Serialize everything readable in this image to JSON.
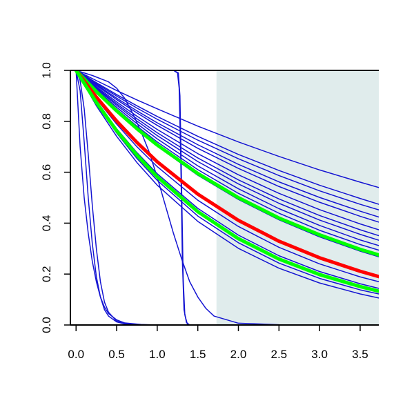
{
  "chart_data": {
    "type": "line",
    "title": "",
    "xlabel": "",
    "ylabel": "",
    "xlim": [
      -0.07,
      3.73
    ],
    "ylim": [
      0.0,
      1.0
    ],
    "x_ticks": [
      0.0,
      0.5,
      1.0,
      1.5,
      2.0,
      2.5,
      3.0,
      3.5
    ],
    "x_tick_labels": [
      "0.0",
      "0.5",
      "1.0",
      "1.5",
      "2.0",
      "2.5",
      "3.0",
      "3.5"
    ],
    "y_ticks": [
      0.0,
      0.2,
      0.4,
      0.6,
      0.8,
      1.0
    ],
    "y_tick_labels": [
      "0.0",
      "0.2",
      "0.4",
      "0.6",
      "0.8",
      "1.0"
    ],
    "grid": false,
    "legend": "none",
    "shaded_region": {
      "x_from": 1.73,
      "x_to": 3.73,
      "color": "#e0ecec"
    },
    "colors": {
      "blue": "#1414d2",
      "red": "#ff0000",
      "green": "#00ff00",
      "axis": "#000000"
    },
    "series": [
      {
        "color": "blue",
        "width": 1.5,
        "x": [
          0,
          0.25,
          0.5,
          0.75,
          1.0,
          1.5,
          2.0,
          2.5,
          3.0,
          3.5,
          3.73
        ],
        "y": [
          1.0,
          0.96,
          0.921,
          0.884,
          0.849,
          0.781,
          0.719,
          0.662,
          0.609,
          0.561,
          0.54
        ]
      },
      {
        "color": "blue",
        "width": 1.5,
        "x": [
          0,
          0.25,
          0.5,
          0.75,
          1.0,
          1.5,
          2.0,
          2.5,
          3.0,
          3.5,
          3.73
        ],
        "y": [
          1.0,
          0.952,
          0.905,
          0.861,
          0.819,
          0.741,
          0.67,
          0.607,
          0.549,
          0.497,
          0.474
        ]
      },
      {
        "color": "blue",
        "width": 1.5,
        "x": [
          0,
          0.25,
          0.5,
          0.75,
          1.0,
          1.5,
          2.0,
          2.5,
          3.0,
          3.5,
          3.73
        ],
        "y": [
          1.0,
          0.948,
          0.899,
          0.852,
          0.808,
          0.726,
          0.653,
          0.587,
          0.527,
          0.474,
          0.452
        ]
      },
      {
        "color": "blue",
        "width": 1.5,
        "x": [
          0,
          0.25,
          0.5,
          0.75,
          1.0,
          1.5,
          2.0,
          2.5,
          3.0,
          3.5,
          3.73
        ],
        "y": [
          1.0,
          0.944,
          0.891,
          0.841,
          0.794,
          0.708,
          0.631,
          0.562,
          0.501,
          0.447,
          0.424
        ]
      },
      {
        "color": "blue",
        "width": 1.5,
        "x": [
          0,
          0.25,
          0.5,
          0.75,
          1.0,
          1.5,
          2.0,
          2.5,
          3.0,
          3.5,
          3.73
        ],
        "y": [
          1.0,
          0.941,
          0.885,
          0.833,
          0.784,
          0.694,
          0.615,
          0.544,
          0.482,
          0.427,
          0.404
        ]
      },
      {
        "color": "blue",
        "width": 1.5,
        "x": [
          0,
          0.25,
          0.5,
          0.75,
          1.0,
          1.5,
          2.0,
          2.5,
          3.0,
          3.5,
          3.73
        ],
        "y": [
          1.0,
          0.936,
          0.876,
          0.82,
          0.768,
          0.673,
          0.59,
          0.517,
          0.453,
          0.397,
          0.374
        ]
      },
      {
        "color": "blue",
        "width": 1.5,
        "x": [
          0,
          0.25,
          0.5,
          0.75,
          1.0,
          1.5,
          2.0,
          2.5,
          3.0,
          3.5,
          3.73
        ],
        "y": [
          1.0,
          0.932,
          0.869,
          0.81,
          0.755,
          0.656,
          0.57,
          0.495,
          0.43,
          0.374,
          0.351
        ]
      },
      {
        "color": "blue",
        "width": 1.5,
        "x": [
          0,
          0.25,
          0.5,
          0.75,
          1.0,
          1.5,
          2.0,
          2.5,
          3.0,
          3.5,
          3.73
        ],
        "y": [
          1.0,
          0.929,
          0.863,
          0.801,
          0.744,
          0.642,
          0.554,
          0.478,
          0.412,
          0.356,
          0.333
        ]
      },
      {
        "color": "blue",
        "width": 1.5,
        "x": [
          0,
          0.25,
          0.5,
          0.75,
          1.0,
          1.5,
          2.0,
          2.5,
          3.0,
          3.5,
          3.73
        ],
        "y": [
          1.0,
          0.925,
          0.855,
          0.791,
          0.731,
          0.625,
          0.535,
          0.457,
          0.391,
          0.334,
          0.312
        ]
      },
      {
        "color": "blue",
        "width": 1.5,
        "x": [
          0,
          0.25,
          0.5,
          0.75,
          1.0,
          1.5,
          2.0,
          2.5,
          3.0,
          3.5,
          3.73
        ],
        "y": [
          1.0,
          0.921,
          0.848,
          0.781,
          0.719,
          0.61,
          0.517,
          0.439,
          0.372,
          0.316,
          0.294
        ]
      },
      {
        "color": "blue",
        "width": 1.5,
        "x": [
          0,
          0.25,
          0.5,
          0.75,
          1.0,
          1.5,
          2.0,
          2.5,
          3.0,
          3.5,
          3.73
        ],
        "y": [
          1.0,
          0.915,
          0.838,
          0.767,
          0.702,
          0.588,
          0.493,
          0.413,
          0.346,
          0.29,
          0.268
        ]
      },
      {
        "color": "blue",
        "width": 1.5,
        "x": [
          0,
          0.25,
          0.5,
          0.75,
          1.0,
          1.5,
          2.0,
          2.5,
          3.0,
          3.5,
          3.73
        ],
        "y": [
          1.0,
          0.888,
          0.789,
          0.7,
          0.622,
          0.49,
          0.387,
          0.305,
          0.24,
          0.189,
          0.17
        ]
      },
      {
        "color": "blue",
        "width": 1.5,
        "x": [
          0,
          0.25,
          0.5,
          0.75,
          1.0,
          1.5,
          2.0,
          2.5,
          3.0,
          3.5,
          3.73
        ],
        "y": [
          1.0,
          0.878,
          0.771,
          0.677,
          0.594,
          0.458,
          0.353,
          0.272,
          0.21,
          0.162,
          0.144
        ]
      },
      {
        "color": "blue",
        "width": 1.5,
        "x": [
          0,
          0.25,
          0.5,
          0.75,
          1.0,
          1.5,
          2.0,
          2.5,
          3.0,
          3.5,
          3.73
        ],
        "y": [
          1.0,
          0.868,
          0.754,
          0.654,
          0.568,
          0.428,
          0.323,
          0.243,
          0.183,
          0.138,
          0.122
        ]
      },
      {
        "color": "blue",
        "width": 1.5,
        "x": [
          0,
          0.25,
          0.5,
          0.75,
          1.0,
          1.5,
          2.0,
          2.5,
          3.0,
          3.5,
          3.73
        ],
        "y": [
          1.0,
          0.861,
          0.741,
          0.638,
          0.549,
          0.407,
          0.301,
          0.223,
          0.165,
          0.122,
          0.106
        ]
      },
      {
        "color": "blue",
        "width": 1.5,
        "x": [
          0,
          0.05,
          0.1,
          0.15,
          0.2,
          0.25,
          0.3,
          0.35,
          0.4,
          0.5,
          0.6,
          0.8,
          1.0,
          3.73
        ],
        "y": [
          1.0,
          0.92,
          0.72,
          0.5,
          0.32,
          0.19,
          0.11,
          0.06,
          0.035,
          0.012,
          0.004,
          0.001,
          0.0,
          0.0
        ]
      },
      {
        "color": "blue",
        "width": 1.5,
        "x": [
          0,
          0.05,
          0.1,
          0.15,
          0.2,
          0.25,
          0.3,
          0.35,
          0.4,
          0.5,
          0.6,
          0.8,
          1.0,
          3.73
        ],
        "y": [
          1.0,
          0.96,
          0.85,
          0.67,
          0.47,
          0.3,
          0.17,
          0.09,
          0.05,
          0.015,
          0.005,
          0.001,
          0.0,
          0.0
        ]
      },
      {
        "color": "blue",
        "width": 1.5,
        "x": [
          0,
          0.05,
          0.1,
          0.15,
          0.2,
          0.25,
          0.3,
          0.35,
          0.4,
          0.5,
          0.6,
          0.8,
          1.0,
          3.73
        ],
        "y": [
          1.0,
          0.7,
          0.5,
          0.36,
          0.25,
          0.17,
          0.11,
          0.07,
          0.045,
          0.02,
          0.008,
          0.002,
          0.0,
          0.0
        ]
      },
      {
        "color": "blue",
        "width": 1.5,
        "x": [
          0,
          0.2,
          0.4,
          0.5,
          0.6,
          0.7,
          0.8,
          0.9,
          1.0,
          1.1,
          1.2,
          1.3,
          1.4,
          1.5,
          1.6,
          1.7,
          2.0,
          2.5,
          3.73
        ],
        "y": [
          1.0,
          0.98,
          0.955,
          0.93,
          0.89,
          0.83,
          0.76,
          0.68,
          0.58,
          0.47,
          0.36,
          0.26,
          0.17,
          0.11,
          0.065,
          0.035,
          0.007,
          0.001,
          0.0
        ]
      },
      {
        "color": "blue",
        "width": 1.5,
        "x": [
          0,
          1.0,
          1.2,
          1.25,
          1.27,
          1.29,
          1.31,
          1.33,
          1.36,
          1.4,
          3.73
        ],
        "y": [
          1.0,
          1.0,
          1.0,
          0.99,
          0.93,
          0.65,
          0.25,
          0.06,
          0.01,
          0.0,
          0.0
        ]
      },
      {
        "color": "blue",
        "width": 1.5,
        "x": [
          0,
          1.0,
          1.2,
          1.26,
          1.28,
          1.3,
          1.32,
          1.34,
          1.37,
          1.4,
          3.73
        ],
        "y": [
          1.0,
          1.0,
          1.0,
          0.99,
          0.9,
          0.55,
          0.18,
          0.04,
          0.005,
          0.0,
          0.0
        ]
      },
      {
        "color": "green",
        "width": 5,
        "x": [
          0,
          0.25,
          0.5,
          0.75,
          1.0,
          1.5,
          2.0,
          2.5,
          3.0,
          3.5,
          3.73
        ],
        "y": [
          1.0,
          0.917,
          0.841,
          0.771,
          0.707,
          0.595,
          0.5,
          0.42,
          0.354,
          0.297,
          0.275
        ]
      },
      {
        "color": "red",
        "width": 5,
        "x": [
          0,
          0.25,
          0.5,
          0.75,
          1.0,
          1.5,
          2.0,
          2.5,
          3.0,
          3.5,
          3.73
        ],
        "y": [
          1.0,
          0.895,
          0.801,
          0.717,
          0.641,
          0.514,
          0.411,
          0.329,
          0.264,
          0.211,
          0.19
        ]
      },
      {
        "color": "green",
        "width": 5,
        "x": [
          0,
          0.25,
          0.5,
          0.75,
          1.0,
          1.5,
          2.0,
          2.5,
          3.0,
          3.5,
          3.73
        ],
        "y": [
          1.0,
          0.874,
          0.763,
          0.667,
          0.582,
          0.445,
          0.339,
          0.259,
          0.198,
          0.151,
          0.133
        ]
      }
    ]
  }
}
